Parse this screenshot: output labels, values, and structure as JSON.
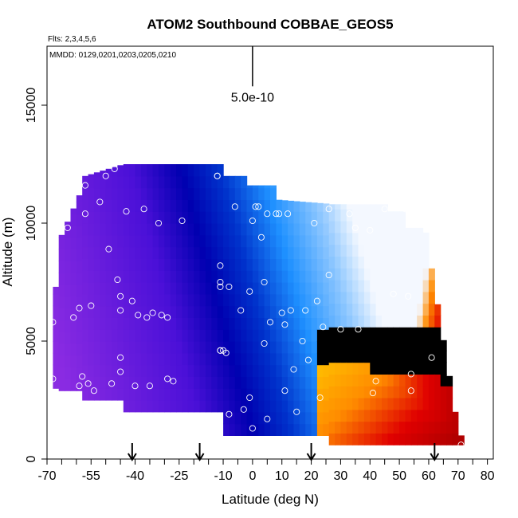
{
  "chart_data": {
    "type": "heatmap",
    "title": "ATOM2 Southbound COBBAE_GEOS5",
    "subtitle_flights": "Flts: 2,3,4,5,6",
    "subtitle_dates": "MMDD: 0129,0201,0203,0205,0210",
    "xlabel": "Latitude (deg N)",
    "ylabel": "Altitude (m)",
    "xlim": [
      -70,
      82
    ],
    "ylim": [
      0,
      17500
    ],
    "x_tick_labels": [
      "-70",
      "-55",
      "-40",
      "-25",
      "-10",
      "0",
      "10",
      "20",
      "30",
      "40",
      "50",
      "60",
      "70",
      "80"
    ],
    "x_tick_values": [
      -70,
      -55,
      -40,
      -25,
      -10,
      0,
      10,
      20,
      30,
      40,
      50,
      60,
      70,
      80
    ],
    "x_minor_ticks": [
      -65,
      -60,
      -50,
      -45,
      -35,
      -30,
      -20,
      -15,
      -5,
      5,
      15,
      25,
      35,
      45,
      55,
      65,
      75
    ],
    "y_tick_labels": [
      "0",
      "5000",
      "10000",
      "15000"
    ],
    "y_tick_values": [
      0,
      5000,
      10000,
      15000
    ],
    "scale_bar_label": "5.0e-10",
    "scale_bar_x": 0,
    "scale_bar_range": [
      15800,
      17500
    ],
    "arrow_latitudes": [
      -41,
      -18,
      20,
      62
    ],
    "colors": {
      "purple": "#8a2be2",
      "dark_blue": "#0000b0",
      "blue": "#0033cc",
      "light_blue": "#1e90ff",
      "white": "#f4f8ff",
      "yellow": "#ffd700",
      "orange": "#ff8c00",
      "red": "#e00000",
      "dark_red": "#b00000"
    },
    "sample_points": [
      [
        -68,
        5800
      ],
      [
        -68,
        3400
      ],
      [
        -63,
        9800
      ],
      [
        -61,
        6000
      ],
      [
        -59,
        6400
      ],
      [
        -59,
        3100
      ],
      [
        -58,
        3500
      ],
      [
        -57,
        10400
      ],
      [
        -57,
        11600
      ],
      [
        -56,
        3200
      ],
      [
        -55,
        6500
      ],
      [
        -54,
        2900
      ],
      [
        -52,
        10900
      ],
      [
        -50,
        12000
      ],
      [
        -49,
        8900
      ],
      [
        -48,
        3200
      ],
      [
        -47,
        12300
      ],
      [
        -46,
        7600
      ],
      [
        -45,
        6900
      ],
      [
        -45,
        6300
      ],
      [
        -45,
        4300
      ],
      [
        -45,
        3700
      ],
      [
        -43,
        10500
      ],
      [
        -41,
        6700
      ],
      [
        -40,
        3100
      ],
      [
        -39,
        6100
      ],
      [
        -37,
        10600
      ],
      [
        -36,
        6000
      ],
      [
        -35,
        3100
      ],
      [
        -34,
        6200
      ],
      [
        -32,
        10000
      ],
      [
        -31,
        6100
      ],
      [
        -29,
        6000
      ],
      [
        -29,
        3400
      ],
      [
        -27,
        3300
      ],
      [
        -24,
        10100
      ],
      [
        -12,
        12000
      ],
      [
        -12,
        12000
      ],
      [
        -11,
        8200
      ],
      [
        -11,
        7500
      ],
      [
        -11,
        7300
      ],
      [
        -11,
        4600
      ],
      [
        -11,
        4600
      ],
      [
        -10,
        4600
      ],
      [
        -9,
        4500
      ],
      [
        -8,
        1900
      ],
      [
        -8,
        7300
      ],
      [
        -6,
        10700
      ],
      [
        -4,
        6300
      ],
      [
        -3,
        2100
      ],
      [
        -1,
        7100
      ],
      [
        -1,
        2600
      ],
      [
        0,
        10100
      ],
      [
        0,
        1300
      ],
      [
        1,
        10700
      ],
      [
        2,
        10700
      ],
      [
        3,
        9400
      ],
      [
        4,
        7500
      ],
      [
        4,
        4900
      ],
      [
        5,
        1700
      ],
      [
        5,
        10400
      ],
      [
        6,
        5800
      ],
      [
        8,
        10400
      ],
      [
        9,
        10400
      ],
      [
        10,
        6200
      ],
      [
        11,
        5700
      ],
      [
        11,
        2900
      ],
      [
        12,
        10400
      ],
      [
        13,
        6300
      ],
      [
        14,
        3800
      ],
      [
        15,
        2000
      ],
      [
        17,
        5000
      ],
      [
        18,
        6300
      ],
      [
        19,
        4200
      ],
      [
        21,
        10000
      ],
      [
        22,
        6700
      ],
      [
        23,
        2600
      ],
      [
        24,
        5600
      ],
      [
        26,
        10600
      ],
      [
        26,
        7800
      ],
      [
        30,
        5500
      ],
      [
        33,
        10400
      ],
      [
        35,
        9800
      ],
      [
        36,
        5500
      ],
      [
        40,
        9700
      ],
      [
        41,
        2800
      ],
      [
        42,
        3300
      ],
      [
        45,
        10600
      ],
      [
        48,
        7000
      ],
      [
        52,
        10600
      ],
      [
        53,
        6900
      ],
      [
        54,
        3600
      ],
      [
        54,
        2900
      ],
      [
        61,
        4300
      ],
      [
        71,
        600
      ]
    ]
  }
}
